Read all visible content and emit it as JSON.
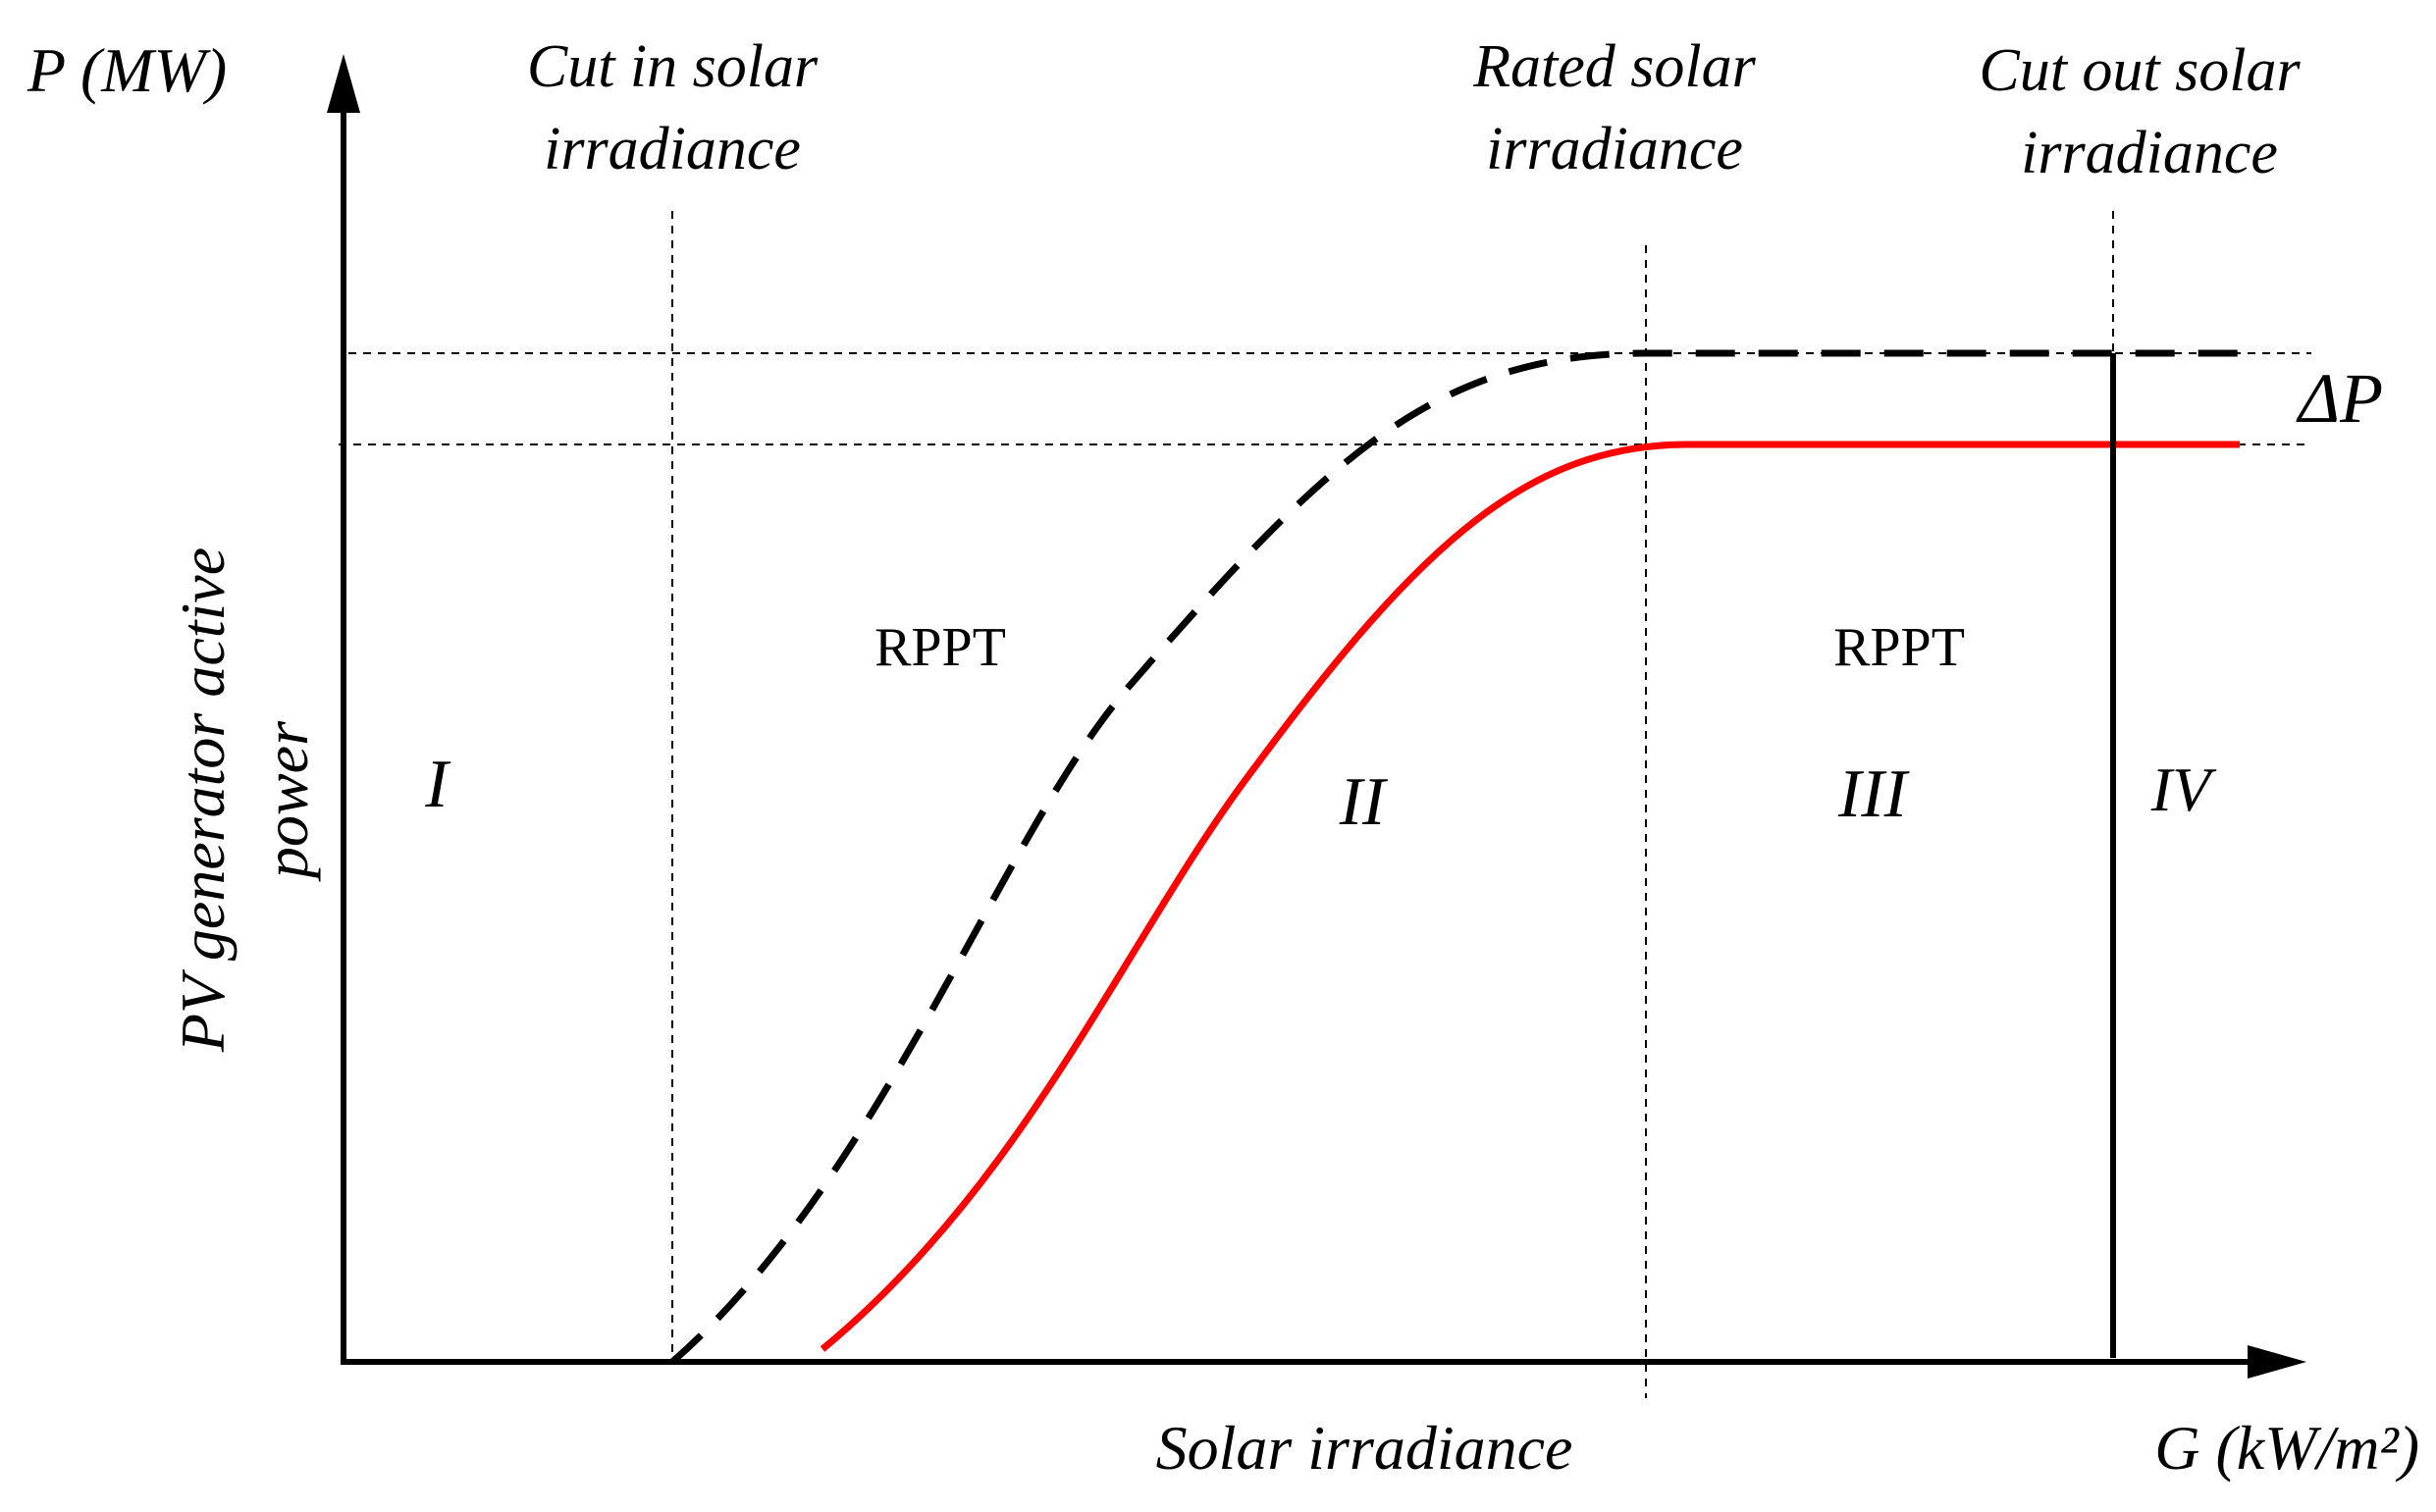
{
  "axes": {
    "y_label": "P (MW)",
    "y_title_line1": "PV generator active",
    "y_title_line2": "power",
    "x_title": "Solar irradiance",
    "x_label": "G (kW/m²)"
  },
  "markers": {
    "cut_in_line1": "Cut in solar",
    "cut_in_line2": "irradiance",
    "rated_line1": "Rated solar",
    "rated_line2": "irradiance",
    "cut_out_line1": "Cut out solar",
    "cut_out_line2": "irradiance"
  },
  "regions": {
    "region_1": "I",
    "region_2": "II",
    "region_3": "III",
    "region_4": "IV",
    "rppt_left": "RPPT",
    "rppt_right": "RPPT"
  },
  "delta_label": "ΔP",
  "colors": {
    "axis": "#000000",
    "mppt_curve": "#000000",
    "rppt_curve": "#ff0000",
    "guide": "#000000"
  }
}
